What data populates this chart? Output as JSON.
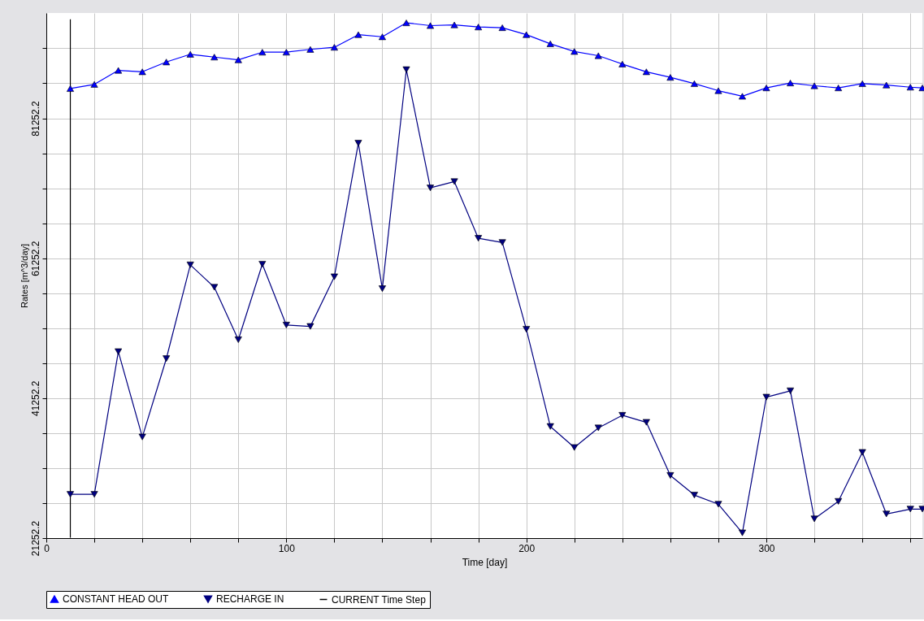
{
  "chart_data": {
    "type": "line",
    "xlabel": "Time [day]",
    "ylabel": "Rates [m^3/day]",
    "x": [
      10,
      20,
      30,
      40,
      50,
      60,
      70,
      80,
      90,
      100,
      110,
      120,
      130,
      140,
      150,
      160,
      170,
      180,
      190,
      200,
      210,
      220,
      230,
      240,
      250,
      260,
      270,
      280,
      290,
      300,
      310,
      320,
      330,
      340,
      350,
      360,
      365
    ],
    "series": [
      {
        "name": "CONSTANT HEAD OUT",
        "color": "#0000ff",
        "marker": "triangle",
        "values": [
          85500,
          86100,
          88100,
          87900,
          89300,
          90400,
          90000,
          89600,
          90700,
          90700,
          91100,
          91400,
          93200,
          92900,
          94900,
          94500,
          94600,
          94300,
          94200,
          93200,
          91900,
          90800,
          90200,
          89000,
          87900,
          87100,
          86200,
          85200,
          84400,
          85600,
          86300,
          85900,
          85600,
          86200,
          86000,
          85700,
          85600
        ]
      },
      {
        "name": "RECHARGE IN",
        "color": "#000080",
        "marker": "triangle-down",
        "values": [
          27500,
          27500,
          47900,
          35700,
          46900,
          60300,
          57100,
          49600,
          60400,
          51700,
          51500,
          58600,
          77700,
          56900,
          88200,
          71300,
          72200,
          64100,
          63500,
          51100,
          37200,
          34200,
          37000,
          38800,
          37800,
          30200,
          27400,
          26100,
          22000,
          41400,
          42300,
          24000,
          26500,
          33500,
          24700,
          25400,
          25400
        ]
      },
      {
        "name": "CURRENT Time Step",
        "color": "#000000",
        "marker": "none",
        "x": [
          10,
          10
        ],
        "values": [
          21300,
          95400
        ]
      }
    ],
    "xlim": [
      0,
      365
    ],
    "xticks": [
      0,
      {
        "value": 20,
        "label": null
      },
      {
        "value": 40,
        "label": null
      },
      {
        "value": 60,
        "label": null
      },
      {
        "value": 80,
        "label": null
      },
      100,
      {
        "value": 120,
        "label": null
      },
      {
        "value": 140,
        "label": null
      },
      {
        "value": 160,
        "label": null
      },
      {
        "value": 180,
        "label": null
      },
      200,
      {
        "value": 220,
        "label": null
      },
      {
        "value": 240,
        "label": null
      },
      {
        "value": 260,
        "label": null
      },
      {
        "value": 280,
        "label": null
      },
      300,
      {
        "value": 320,
        "label": null
      },
      {
        "value": 340,
        "label": null
      },
      {
        "value": 360,
        "label": null
      }
    ],
    "ylim": [
      21252.2,
      96300
    ],
    "yticks": [
      21252.2,
      {
        "value": 26252.2,
        "label": null
      },
      {
        "value": 31252.2,
        "label": null
      },
      {
        "value": 36252.2,
        "label": null
      },
      41252.2,
      {
        "value": 46252.2,
        "label": null
      },
      {
        "value": 51252.2,
        "label": null
      },
      {
        "value": 56252.2,
        "label": null
      },
      61252.2,
      {
        "value": 66252.2,
        "label": null
      },
      {
        "value": 71252.2,
        "label": null
      },
      {
        "value": 76252.2,
        "label": null
      },
      81252.2,
      {
        "value": 86252.2,
        "label": null
      },
      {
        "value": 91252.2,
        "label": null
      }
    ],
    "grid": true,
    "legend": "bottom"
  }
}
